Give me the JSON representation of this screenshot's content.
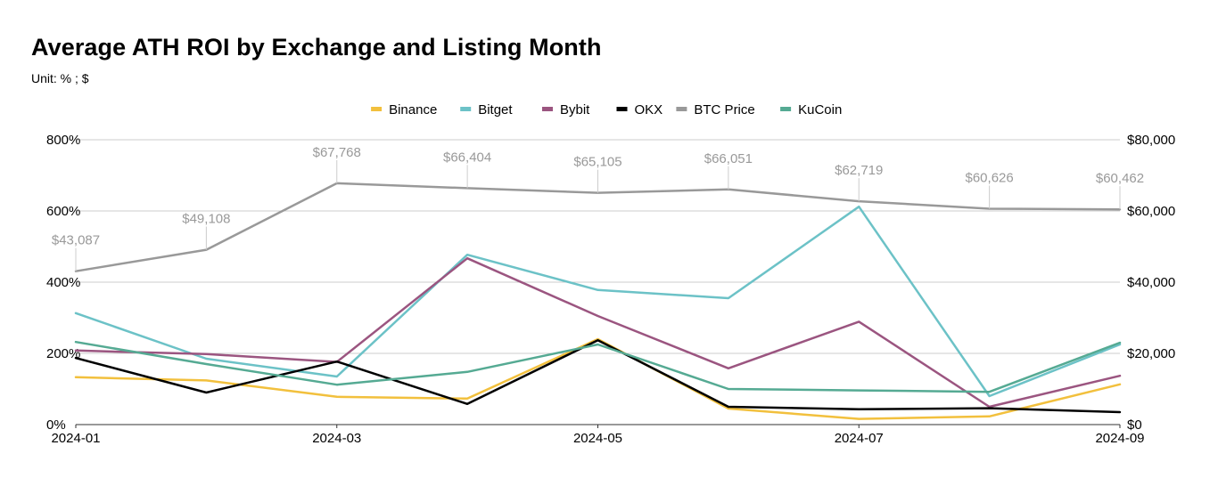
{
  "chart_data": {
    "type": "line",
    "title": "Average ATH ROI by Exchange and Listing Month",
    "subtitle": "Unit: % ; $",
    "legend_position": "top-center",
    "grid": true,
    "x": [
      "2024-01",
      "2024-02",
      "2024-03",
      "2024-04",
      "2024-05",
      "2024-06",
      "2024-07",
      "2024-08",
      "2024-09"
    ],
    "x_tick_labels": [
      "2024-01",
      "2024-03",
      "2024-05",
      "2024-07",
      "2024-09"
    ],
    "y_left": {
      "ylim": [
        0,
        800
      ],
      "ticks": [
        0,
        200,
        400,
        600,
        800
      ],
      "tick_labels": [
        "0%",
        "200%",
        "400%",
        "600%",
        "800%"
      ]
    },
    "y_right": {
      "ylim": [
        0,
        80000
      ],
      "ticks": [
        0,
        20000,
        40000,
        60000,
        80000
      ],
      "tick_labels": [
        "$0",
        "$20,000",
        "$40,000",
        "$60,000",
        "$80,000"
      ]
    },
    "series": [
      {
        "name": "Binance",
        "axis": "left",
        "color": "#F2C03D",
        "values": [
          133,
          124,
          78,
          73,
          240,
          45,
          16,
          23,
          113
        ]
      },
      {
        "name": "Bitget",
        "axis": "left",
        "color": "#6CC2C7",
        "values": [
          313,
          185,
          135,
          477,
          378,
          355,
          612,
          80,
          225
        ]
      },
      {
        "name": "Bybit",
        "axis": "left",
        "color": "#9B5580",
        "values": [
          208,
          198,
          176,
          467,
          305,
          158,
          289,
          50,
          137
        ]
      },
      {
        "name": "OKX",
        "axis": "left",
        "color": "#000000",
        "values": [
          187,
          90,
          177,
          58,
          237,
          50,
          43,
          46,
          35
        ]
      },
      {
        "name": "BTC Price",
        "axis": "right",
        "color": "#999999",
        "values": [
          43087,
          49108,
          67768,
          66404,
          65105,
          66051,
          62719,
          60626,
          60462
        ],
        "data_labels": [
          "$43,087",
          "$49,108",
          "$67,768",
          "$66,404",
          "$65,105",
          "$66,051",
          "$62,719",
          "$60,626",
          "$60,462"
        ]
      },
      {
        "name": "KuCoin",
        "axis": "left",
        "color": "#55AA93",
        "values": [
          232,
          170,
          112,
          148,
          225,
          100,
          96,
          92,
          230
        ]
      }
    ]
  }
}
